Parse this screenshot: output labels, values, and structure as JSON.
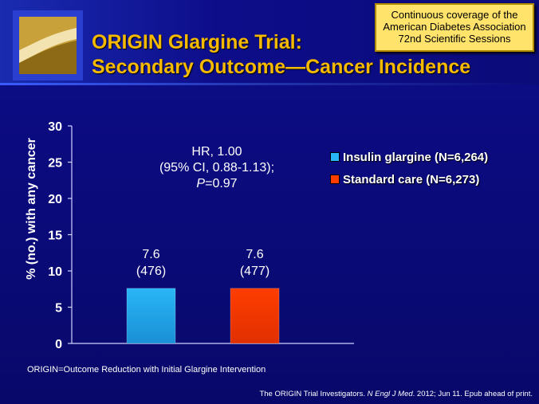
{
  "header": {
    "title_line1": "ORIGIN Glargine Trial:",
    "title_line2": "Secondary Outcome—Cancer Incidence",
    "coverage_line1": "Continuous coverage of the",
    "coverage_line2": "American Diabetes Association",
    "coverage_line3": "72nd Scientific Sessions"
  },
  "stats": {
    "line1": "HR, 1.00",
    "line2": "(95% CI, 0.88-1.13);",
    "p_symbol": "P",
    "p_value": "=0.97"
  },
  "footnote": "ORIGIN=Outcome Reduction with Initial Glargine Intervention",
  "citation": {
    "authors": "The ORIGIN Trial Investigators. ",
    "journal": "N Engl J Med",
    "rest": ". 2012; Jun 11. Epub ahead of print."
  },
  "chart_data": {
    "type": "bar",
    "title": "",
    "xlabel": "",
    "ylabel": "% (no.) with any cancer",
    "ylim": [
      0,
      30
    ],
    "yticks": [
      0,
      5,
      10,
      15,
      20,
      25,
      30
    ],
    "series": [
      {
        "name": "Insulin glargine (N=6,264)",
        "value": 7.6,
        "label": "7.6",
        "count_label": "(476)",
        "color": "#29b6f6"
      },
      {
        "name": "Standard care (N=6,273)",
        "value": 7.6,
        "label": "7.6",
        "count_label": "(477)",
        "color": "#ff3d00"
      }
    ],
    "legend": "right",
    "grid": false
  }
}
